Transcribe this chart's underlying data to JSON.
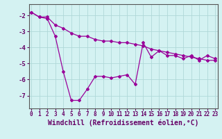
{
  "xlabel": "Windchill (Refroidissement éolien,°C)",
  "x": [
    0,
    1,
    2,
    3,
    4,
    5,
    6,
    7,
    8,
    9,
    10,
    11,
    12,
    13,
    14,
    15,
    16,
    17,
    18,
    19,
    20,
    21,
    22,
    23
  ],
  "line1": [
    -1.8,
    -2.1,
    -2.2,
    -3.3,
    -5.5,
    -7.3,
    -7.3,
    -6.6,
    -5.8,
    -5.8,
    -5.9,
    -5.8,
    -5.7,
    -6.3,
    -3.7,
    -4.6,
    -4.2,
    -4.5,
    -4.5,
    -4.7,
    -4.5,
    -4.8,
    -4.5,
    -4.7
  ],
  "line2": [
    -1.8,
    -2.1,
    -2.1,
    -2.6,
    -2.8,
    -3.1,
    -3.3,
    -3.3,
    -3.5,
    -3.6,
    -3.6,
    -3.7,
    -3.7,
    -3.8,
    -3.9,
    -4.1,
    -4.2,
    -4.3,
    -4.4,
    -4.5,
    -4.6,
    -4.7,
    -4.8,
    -4.8
  ],
  "line_color": "#990099",
  "bg_color": "#d4f2f2",
  "grid_color": "#b0d8d8",
  "ylim": [
    -7.8,
    -1.3
  ],
  "xlim": [
    -0.3,
    23.3
  ],
  "yticks": [
    -2,
    -3,
    -4,
    -5,
    -6,
    -7
  ],
  "xticks": [
    0,
    1,
    2,
    3,
    4,
    5,
    6,
    7,
    8,
    9,
    10,
    11,
    12,
    13,
    14,
    15,
    16,
    17,
    18,
    19,
    20,
    21,
    22,
    23
  ],
  "tick_fontsize": 5.5,
  "xlabel_fontsize": 7.0,
  "marker": "D",
  "markersize": 2.0,
  "linewidth": 0.9
}
